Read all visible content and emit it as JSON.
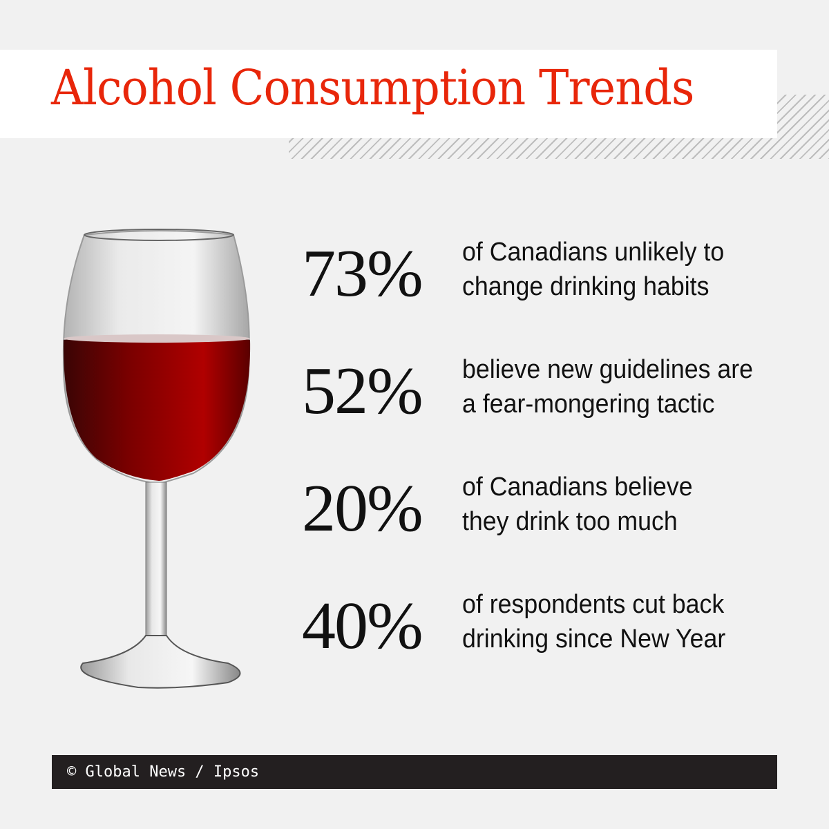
{
  "title": "Alcohol Consumption Trends",
  "colors": {
    "title": "#e8260a",
    "background": "#f1f1f1",
    "footer_bg": "#231f20",
    "wine": "#8b0000"
  },
  "image": "wine-glass",
  "stats": [
    {
      "value": "73%",
      "line1": "of Canadians unlikely to",
      "line2": "change drinking habits"
    },
    {
      "value": "52%",
      "line1": "believe new guidelines are",
      "line2": "a fear-mongering tactic"
    },
    {
      "value": "20%",
      "line1": "of Canadians believe",
      "line2": "they drink too much"
    },
    {
      "value": "40%",
      "line1": "of respondents cut back",
      "line2": "drinking since New Year"
    }
  ],
  "footer": {
    "credit": "© Global News / Ipsos"
  }
}
